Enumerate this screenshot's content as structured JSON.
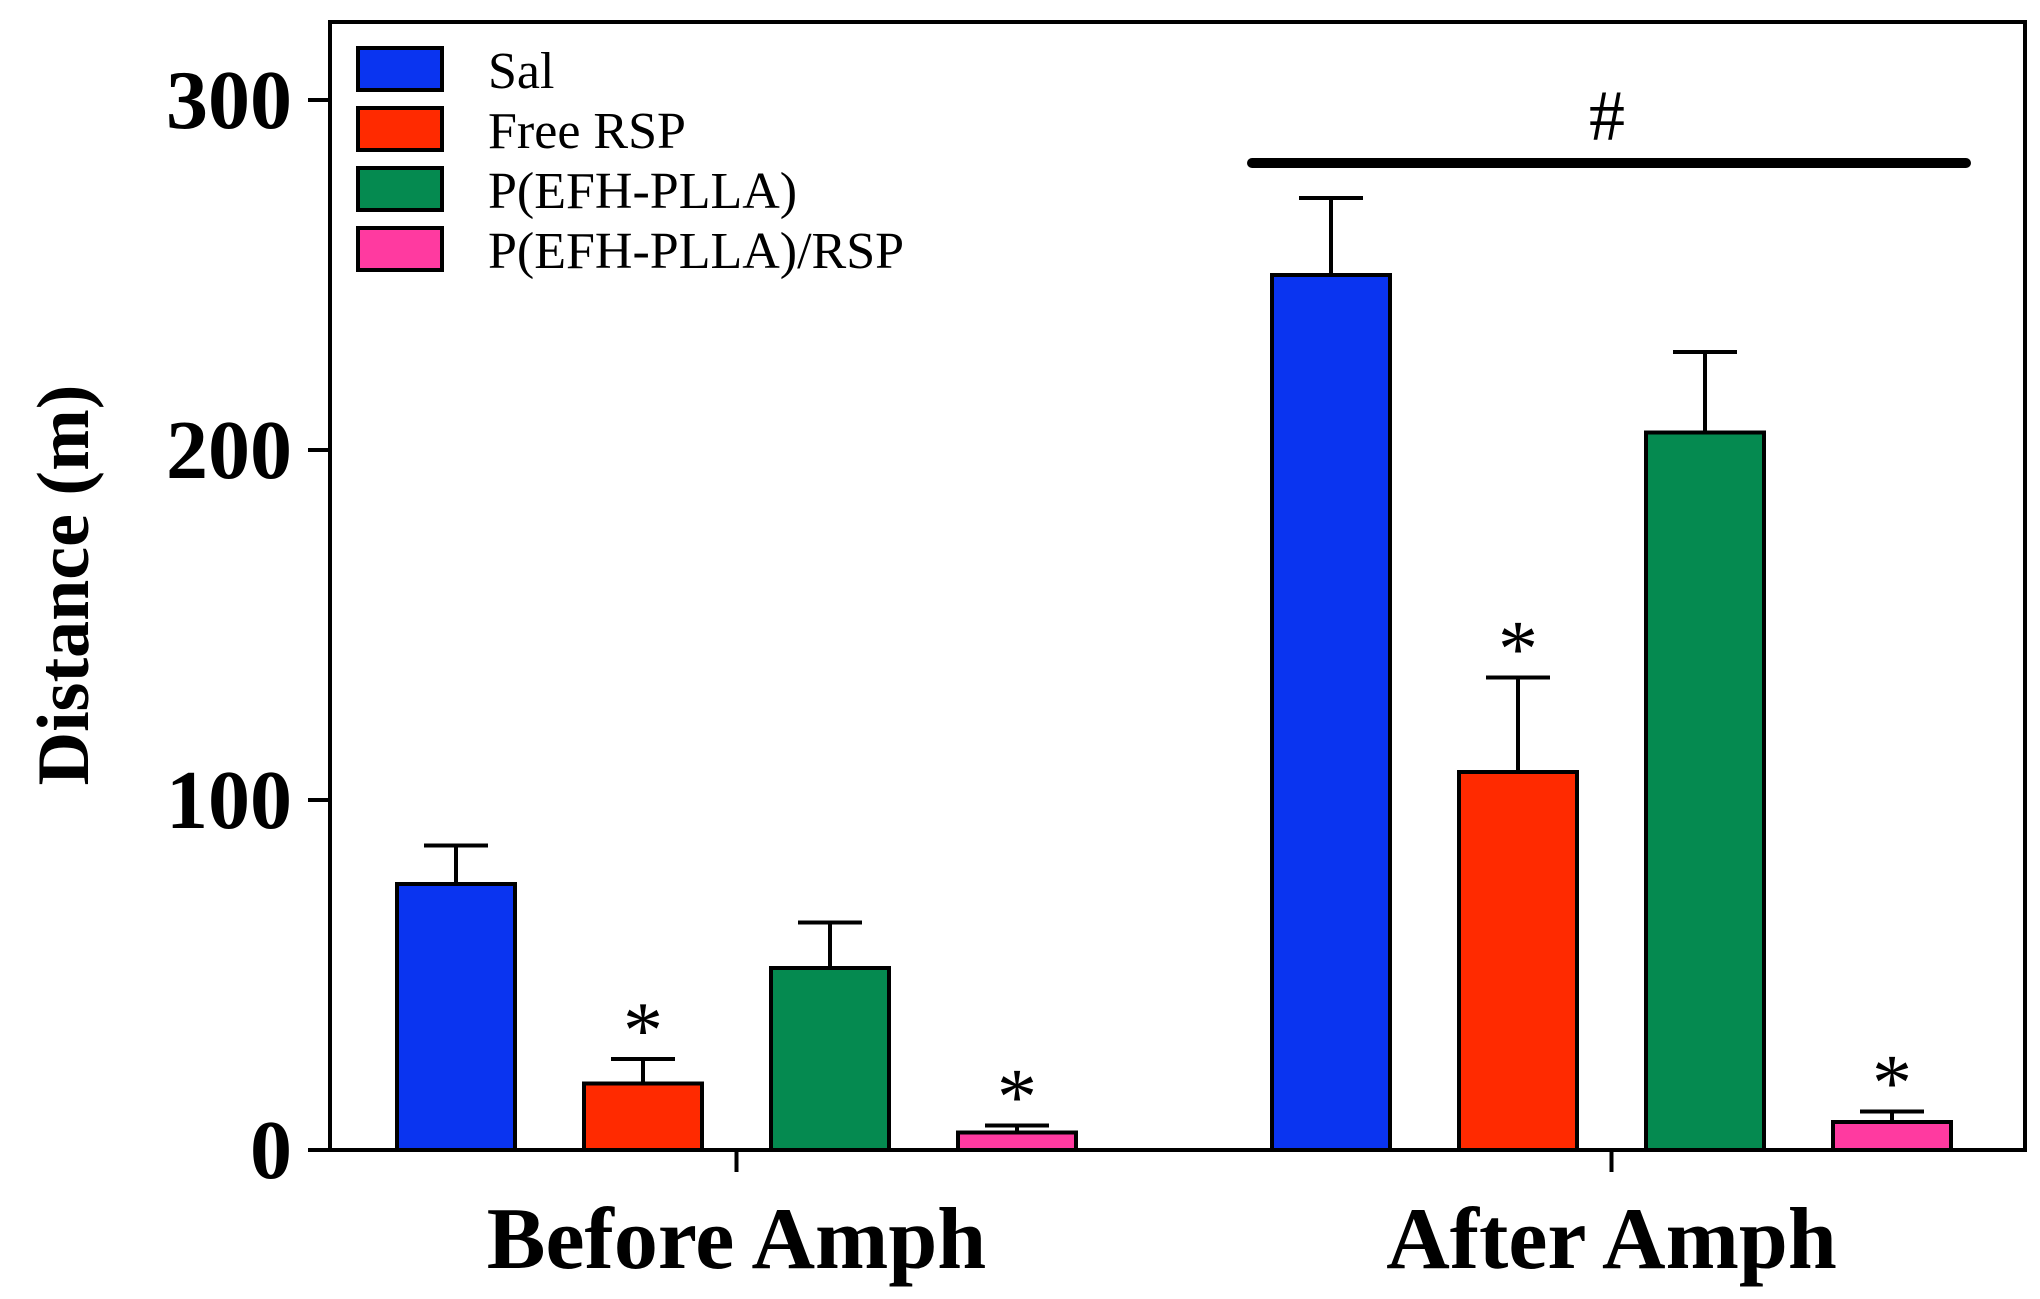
{
  "chart_data": {
    "type": "bar",
    "title": "",
    "xlabel": "",
    "ylabel": "Distance (m)",
    "ylim": [
      0,
      320
    ],
    "yticks": [
      0,
      100,
      200,
      300
    ],
    "ytick_labels": [
      "0",
      "100",
      "200",
      "300"
    ],
    "categories": [
      "Before Amph",
      "After Amph"
    ],
    "series": [
      {
        "name": "Sal",
        "color": "#0a34f0",
        "values": [
          76,
          250
        ],
        "errors": [
          11,
          22
        ],
        "significance": [
          "",
          ""
        ]
      },
      {
        "name": "Free RSP",
        "color": "#ff2a00",
        "values": [
          19,
          108
        ],
        "errors": [
          7,
          27
        ],
        "significance": [
          "*",
          "*"
        ]
      },
      {
        "name": "P(EFH-PLLA)",
        "color": "#058a50",
        "values": [
          52,
          205
        ],
        "errors": [
          13,
          23
        ],
        "significance": [
          "",
          ""
        ]
      },
      {
        "name": "P(EFH-PLLA)/RSP",
        "color": "#ff3aa0",
        "values": [
          5,
          8
        ],
        "errors": [
          2,
          3
        ],
        "significance": [
          "*",
          "*"
        ]
      }
    ],
    "legend_position": "top-left",
    "annotation": {
      "text": "#",
      "spans": "After Amph"
    }
  }
}
